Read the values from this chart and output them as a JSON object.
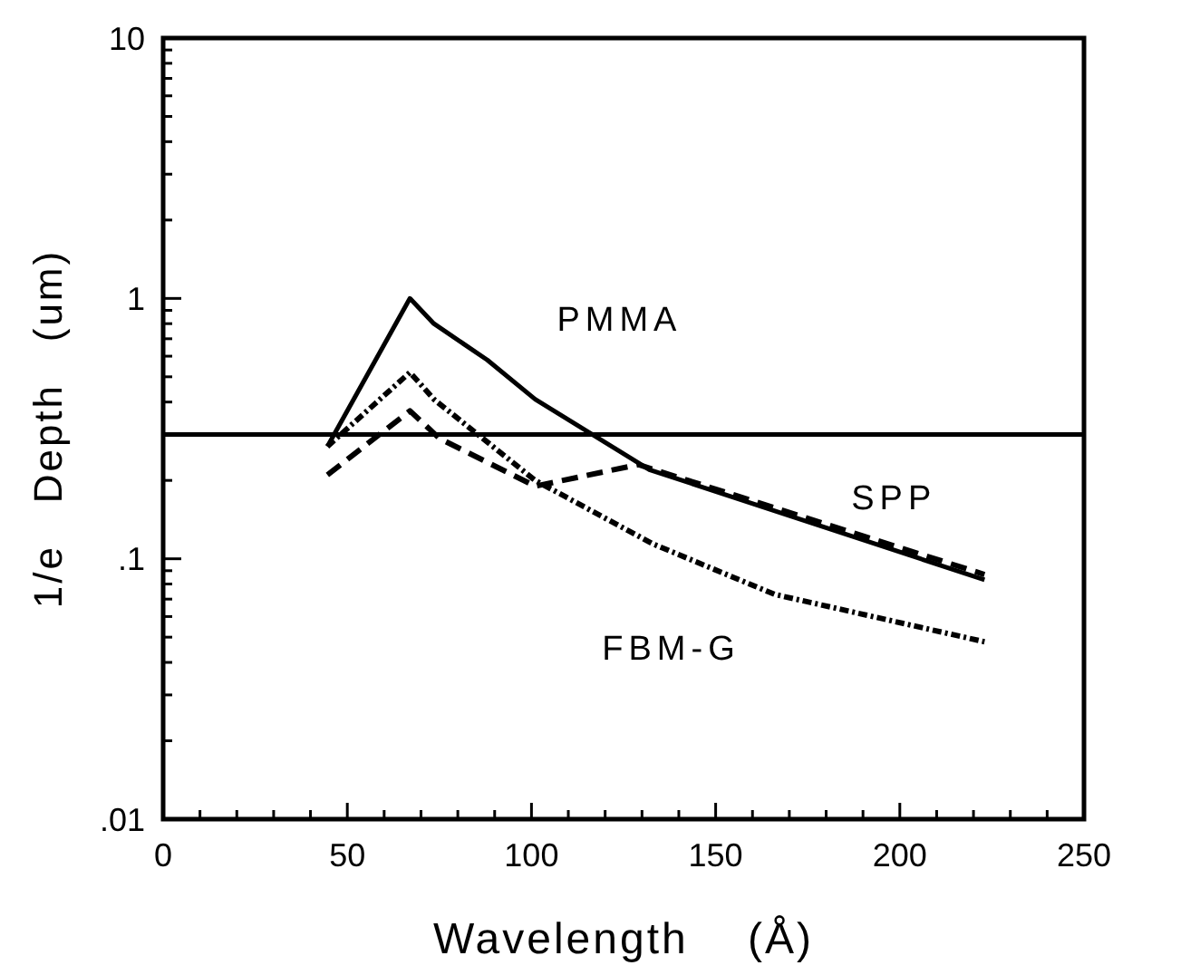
{
  "chart_data": {
    "type": "line",
    "xlabel": "Wavelength    (Å)",
    "ylabel": "1/e   Depth   (um)",
    "log": "y",
    "grid": false,
    "marker": "none",
    "xlim": [
      0,
      250
    ],
    "ylim": [
      0.01,
      10
    ],
    "xticks": [
      0,
      {
        "value": 10,
        "label": null
      },
      {
        "value": 20,
        "label": null
      },
      {
        "value": 30,
        "label": null
      },
      {
        "value": 40,
        "label": null
      },
      50,
      {
        "value": 60,
        "label": null
      },
      {
        "value": 70,
        "label": null
      },
      {
        "value": 80,
        "label": null
      },
      {
        "value": 90,
        "label": null
      },
      100,
      {
        "value": 110,
        "label": null
      },
      {
        "value": 120,
        "label": null
      },
      {
        "value": 130,
        "label": null
      },
      {
        "value": 140,
        "label": null
      },
      150,
      {
        "value": 160,
        "label": null
      },
      {
        "value": 170,
        "label": null
      },
      {
        "value": 180,
        "label": null
      },
      {
        "value": 190,
        "label": null
      },
      200,
      {
        "value": 210,
        "label": null
      },
      {
        "value": 220,
        "label": null
      },
      {
        "value": 230,
        "label": null
      },
      {
        "value": 240,
        "label": null
      },
      250
    ],
    "yticks": [
      {
        "value": 0.01,
        "label": ".01"
      },
      {
        "value": 0.02,
        "label": null
      },
      {
        "value": 0.03,
        "label": null
      },
      {
        "value": 0.04,
        "label": null
      },
      {
        "value": 0.05,
        "label": null
      },
      {
        "value": 0.06,
        "label": null
      },
      {
        "value": 0.07,
        "label": null
      },
      {
        "value": 0.08,
        "label": null
      },
      {
        "value": 0.09,
        "label": null
      },
      {
        "value": 0.1,
        "label": ".1"
      },
      {
        "value": 0.2,
        "label": null
      },
      {
        "value": 0.3,
        "label": null
      },
      {
        "value": 0.4,
        "label": null
      },
      {
        "value": 0.5,
        "label": null
      },
      {
        "value": 0.6,
        "label": null
      },
      {
        "value": 0.7,
        "label": null
      },
      {
        "value": 0.8,
        "label": null
      },
      {
        "value": 0.9,
        "label": null
      },
      1,
      {
        "value": 2,
        "label": null
      },
      {
        "value": 3,
        "label": null
      },
      {
        "value": 4,
        "label": null
      },
      {
        "value": 5,
        "label": null
      },
      {
        "value": 6,
        "label": null
      },
      {
        "value": 7,
        "label": null
      },
      {
        "value": 8,
        "label": null
      },
      {
        "value": 9,
        "label": null
      },
      10
    ],
    "ref_lines": [
      {
        "axis": "y",
        "value": 0.3,
        "color": "#000000",
        "line_style": "solid"
      }
    ],
    "series": [
      {
        "name": "PMMA",
        "color": "#000000",
        "line_style": "solid",
        "x": [
          44.6,
          67,
          73.5,
          88,
          101,
          132,
          223
        ],
        "values": [
          0.27,
          1.0,
          0.8,
          0.58,
          0.41,
          0.22,
          0.083
        ]
      },
      {
        "name": "SPP",
        "color": "#000000",
        "line_style": "dashed",
        "x": [
          44.6,
          67,
          75,
          101,
          129,
          223
        ],
        "values": [
          0.21,
          0.37,
          0.29,
          0.19,
          0.23,
          0.087
        ]
      },
      {
        "name": "FBM-G",
        "color": "#000000",
        "line_style": "dotted",
        "x": [
          44.6,
          67,
          73.5,
          101,
          133,
          166,
          223
        ],
        "values": [
          0.27,
          0.52,
          0.41,
          0.2,
          0.114,
          0.073,
          0.048
        ]
      }
    ]
  }
}
